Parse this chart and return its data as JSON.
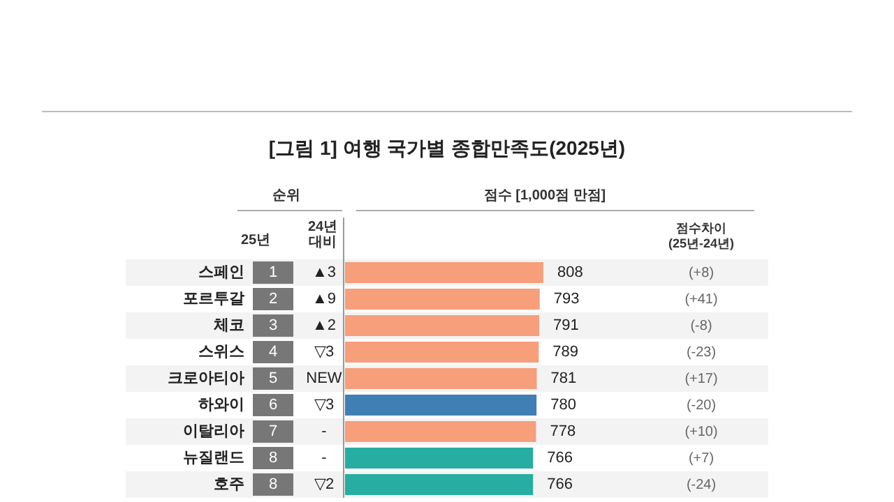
{
  "chart_data": {
    "type": "bar",
    "orientation": "horizontal",
    "title": "[그림 1] 여행 국가별 종합만족도(2025년)",
    "categories": [
      "스페인",
      "포르투갈",
      "체코",
      "스위스",
      "크로아티아",
      "하와이",
      "이탈리아",
      "뉴질랜드",
      "호주"
    ],
    "values": [
      808,
      793,
      791,
      789,
      781,
      780,
      778,
      766,
      766
    ],
    "colors": [
      "#f79e7b",
      "#f79e7b",
      "#f79e7b",
      "#f79e7b",
      "#f79e7b",
      "#3f7fb3",
      "#f79e7b",
      "#27ada1",
      "#27ada1"
    ],
    "data_labels": true,
    "tick_labels": "y",
    "annotations": [
      "순위",
      "점수 [1,000점 만점]",
      "25년",
      "24년\n대비",
      "점수차이\n(25년-24년)",
      "1",
      "▲3",
      "(+8)",
      "2",
      "▲9",
      "(+41)",
      "3",
      "▲2",
      "(-8)",
      "4",
      "▽3",
      "(-23)",
      "5",
      "NEW",
      "(+17)",
      "6",
      "▽3",
      "(-20)",
      "7",
      "-",
      "(+10)",
      "8",
      "-",
      "(+7)",
      "8",
      "▽2",
      "(-24)"
    ]
  }
}
